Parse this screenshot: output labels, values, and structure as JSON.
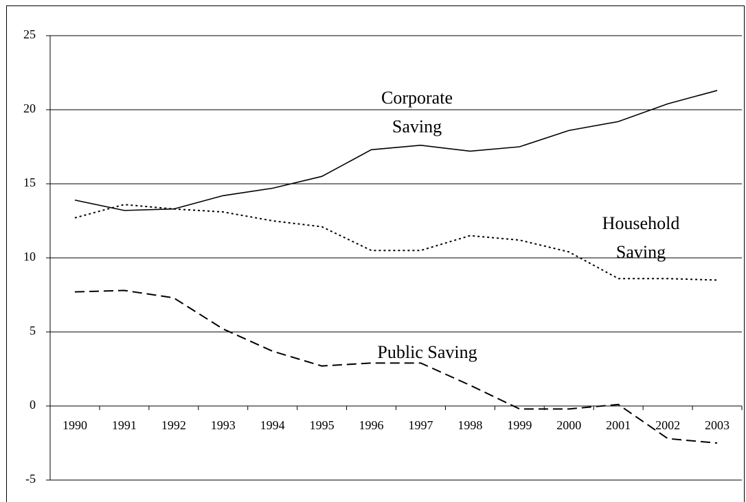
{
  "chart_data": {
    "type": "line",
    "categories": [
      "1990",
      "1991",
      "1992",
      "1993",
      "1994",
      "1995",
      "1996",
      "1997",
      "1998",
      "1999",
      "2000",
      "2001",
      "2002",
      "2003"
    ],
    "series": [
      {
        "label": [
          "Corporate",
          "Saving"
        ],
        "color": "#000000",
        "dash": "solid",
        "values": [
          13.9,
          13.2,
          13.3,
          14.2,
          14.7,
          15.5,
          17.3,
          17.6,
          17.2,
          17.5,
          18.6,
          19.2,
          20.4,
          21.3
        ]
      },
      {
        "label": [
          "Household",
          "Saving"
        ],
        "color": "#000000",
        "dash": "dotted",
        "values": [
          12.7,
          13.6,
          13.3,
          13.1,
          12.5,
          12.1,
          10.5,
          10.5,
          11.5,
          11.2,
          10.4,
          8.6,
          8.6,
          8.5
        ]
      },
      {
        "label": [
          "Public Saving"
        ],
        "color": "#000000",
        "dash": "dashed",
        "values": [
          7.7,
          7.8,
          7.3,
          5.2,
          3.7,
          2.7,
          2.9,
          2.9,
          1.4,
          -0.2,
          -0.2,
          0.1,
          -2.2,
          -2.5
        ]
      }
    ],
    "ylim": [
      -5,
      25
    ],
    "yticks": [
      -5,
      0,
      5,
      10,
      15,
      20,
      25
    ],
    "grid": true
  }
}
